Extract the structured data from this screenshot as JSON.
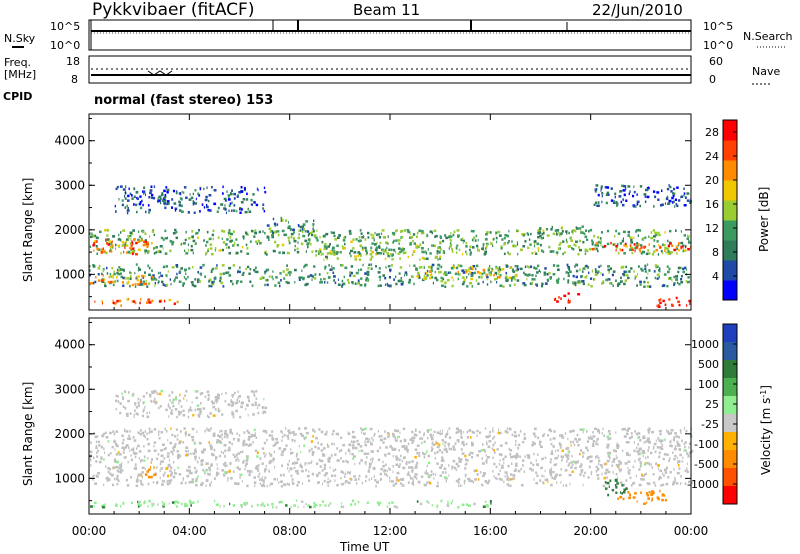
{
  "header": {
    "station": "Pykkvibaer (fitACF)",
    "beam": "Beam 11",
    "date": "22/Jun/2010"
  },
  "ops_panel": {
    "left_top_label": "N.Sky",
    "left_top_ticks": [
      "10^5",
      "10^0"
    ],
    "right_top_label": "N.Search",
    "right_top_ticks": [
      "10^5",
      "10^0"
    ],
    "freq_label_1": "Freq.",
    "freq_label_2": "[MHz]",
    "freq_ticks": [
      "18",
      "8"
    ],
    "nave_label": "Nave",
    "nave_ticks": [
      "60",
      "0"
    ],
    "cpid_label": "CPID",
    "cpid_text": "normal (fast stereo) 153"
  },
  "colors": {
    "power_scale": [
      "#0000ff",
      "#1f4aa8",
      "#2f7c5a",
      "#3a9a60",
      "#9acd32",
      "#f0c800",
      "#ff8c00",
      "#ff4000",
      "#ff0000"
    ],
    "velocity_scale": [
      "#1f3fbf",
      "#2a5aa0",
      "#2f7c3a",
      "#4caf50",
      "#90ee90",
      "#c8c8c8",
      "#ffb000",
      "#ff8c00",
      "#ff5000",
      "#ff0000"
    ],
    "gray_scatter": "#c0c0c0"
  },
  "chart_data": [
    {
      "type": "heatmap",
      "title": "",
      "xlabel": "Time UT",
      "ylabel": "Slant Range [km]",
      "ylim": [
        200,
        4600
      ],
      "xlim": [
        "00:00",
        "24:00"
      ],
      "x_ticks": [
        "00:00",
        "04:00",
        "08:00",
        "12:00",
        "16:00",
        "20:00",
        "00:00"
      ],
      "y_ticks": [
        "1000",
        "2000",
        "3000",
        "4000"
      ],
      "colorbar_label": "Power [dB]",
      "colorbar_ticks": [
        "4",
        "8",
        "12",
        "16",
        "20",
        "24",
        "28"
      ],
      "colorbar_range": [
        0,
        30
      ],
      "bands": [
        {
          "hour_start": 0.0,
          "hour_end": 24.0,
          "range_center": 1000,
          "range_width": 500,
          "power": 10
        },
        {
          "hour_start": 0.0,
          "hour_end": 24.0,
          "range_center": 1750,
          "range_width": 550,
          "power": 12
        },
        {
          "hour_start": 0.0,
          "hour_end": 2.5,
          "range_center": 1650,
          "range_width": 350,
          "power": 24
        },
        {
          "hour_start": 0.0,
          "hour_end": 2.5,
          "range_center": 900,
          "range_width": 250,
          "power": 20
        },
        {
          "hour_start": 0.0,
          "hour_end": 3.5,
          "range_center": 400,
          "range_width": 150,
          "power": 24
        },
        {
          "hour_start": 1.0,
          "hour_end": 7.0,
          "range_center": 2700,
          "range_width": 600,
          "power": 6
        },
        {
          "hour_start": 7.0,
          "hour_end": 9.0,
          "range_center": 2100,
          "range_width": 400,
          "power": 10
        },
        {
          "hour_start": 9.0,
          "hour_end": 14.0,
          "range_center": 1500,
          "range_width": 300,
          "power": 14
        },
        {
          "hour_start": 13.0,
          "hour_end": 17.0,
          "range_center": 1050,
          "range_width": 300,
          "power": 16
        },
        {
          "hour_start": 17.0,
          "hour_end": 20.0,
          "range_center": 2000,
          "range_width": 200,
          "power": 12
        },
        {
          "hour_start": 18.5,
          "hour_end": 19.5,
          "range_center": 500,
          "range_width": 200,
          "power": 28
        },
        {
          "hour_start": 20.0,
          "hour_end": 24.0,
          "range_center": 1650,
          "range_width": 200,
          "power": 24
        },
        {
          "hour_start": 20.0,
          "hour_end": 24.0,
          "range_center": 2800,
          "range_width": 500,
          "power": 6
        },
        {
          "hour_start": 22.5,
          "hour_end": 24.0,
          "range_center": 400,
          "range_width": 200,
          "power": 28
        }
      ]
    },
    {
      "type": "heatmap",
      "title": "",
      "xlabel": "Time UT",
      "ylabel": "Slant Range [km]",
      "ylim": [
        200,
        4600
      ],
      "xlim": [
        "00:00",
        "24:00"
      ],
      "x_ticks": [
        "00:00",
        "04:00",
        "08:00",
        "12:00",
        "16:00",
        "20:00",
        "00:00"
      ],
      "y_ticks": [
        "1000",
        "2000",
        "3000",
        "4000"
      ],
      "colorbar_label": "Velocity [m s^-1]",
      "colorbar_ticks": [
        "1000",
        "500",
        "100",
        "25",
        "-25",
        "-100",
        "-500",
        "-1000"
      ],
      "bands": [
        {
          "hour_start": 0.0,
          "hour_end": 24.0,
          "range_center": 1500,
          "range_width": 1300,
          "velocity": 0
        },
        {
          "hour_start": 1.0,
          "hour_end": 7.0,
          "range_center": 2700,
          "range_width": 600,
          "velocity": 0
        },
        {
          "hour_start": 2.2,
          "hour_end": 2.6,
          "range_center": 1250,
          "range_width": 400,
          "velocity": -300
        },
        {
          "hour_start": 0.0,
          "hour_end": 16.0,
          "range_center": 450,
          "range_width": 150,
          "velocity": 60
        },
        {
          "hour_start": 20.5,
          "hour_end": 21.5,
          "range_center": 800,
          "range_width": 400,
          "velocity": 300
        },
        {
          "hour_start": 21.0,
          "hour_end": 23.0,
          "range_center": 600,
          "range_width": 300,
          "velocity": -300
        }
      ]
    }
  ]
}
